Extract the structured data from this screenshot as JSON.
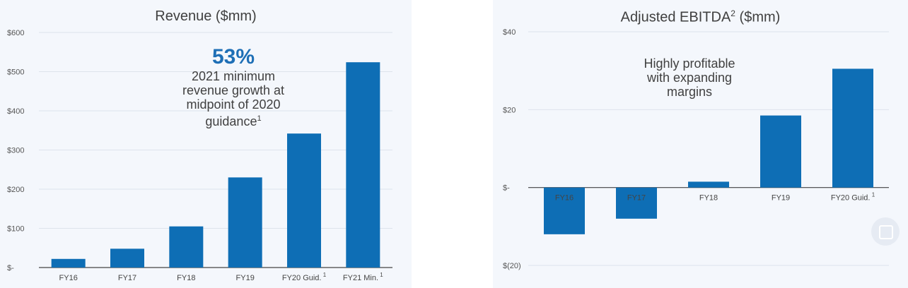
{
  "chart_data": [
    {
      "type": "bar",
      "title": "Revenue ($mm)",
      "categories": [
        "FY16",
        "FY17",
        "FY18",
        "FY19",
        "FY20 Guid.",
        "FY21 Min."
      ],
      "category_superscripts": [
        "",
        "",
        "",
        "",
        "1",
        "1"
      ],
      "values": [
        22,
        48,
        105,
        230,
        342,
        524
      ],
      "ylim": [
        0,
        600
      ],
      "yticks": [
        0,
        100,
        200,
        300,
        400,
        500,
        600
      ],
      "ytick_labels": [
        "$-",
        "$100",
        "$200",
        "$300",
        "$400",
        "$500",
        "$600"
      ],
      "grid": true,
      "bar_color": "#0e6eb5",
      "annotation": {
        "big": "53%",
        "lines": [
          "2021 minimum",
          "revenue growth at",
          "midpoint of 2020",
          "guidance"
        ],
        "superscript": "1"
      }
    },
    {
      "type": "bar",
      "title": "Adjusted EBITDA",
      "title_superscript": "2",
      "title_suffix": "($mm)",
      "categories": [
        "FY16",
        "FY17",
        "FY18",
        "FY19",
        "FY20 Guid."
      ],
      "category_superscripts": [
        "",
        "",
        "",
        "",
        "1"
      ],
      "values": [
        -12,
        -8,
        1.5,
        18.5,
        30.5
      ],
      "ylim": [
        -20,
        40
      ],
      "yticks": [
        -20,
        0,
        20,
        40
      ],
      "ytick_labels": [
        "$(20)",
        "$-",
        "$20",
        "$40"
      ],
      "grid": true,
      "bar_color": "#0e6eb5",
      "annotation": {
        "lines": [
          "Highly profitable",
          "with expanding",
          "margins"
        ]
      }
    }
  ]
}
